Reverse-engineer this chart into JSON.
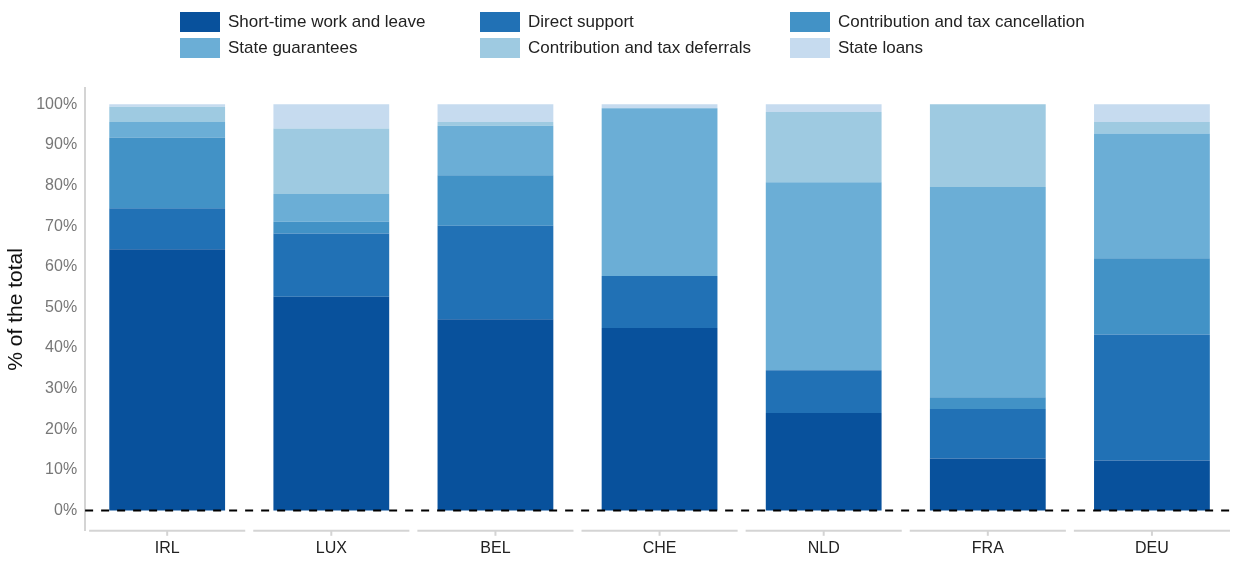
{
  "chart_data": {
    "type": "bar",
    "stacked": true,
    "ylabel": "% of the total",
    "categories": [
      "IRL",
      "LUX",
      "BEL",
      "CHE",
      "NLD",
      "FRA",
      "DEU"
    ],
    "series": [
      {
        "name": "Short-time work and leave",
        "color": "#08519c",
        "values": [
          64.3,
          52.6,
          47.1,
          44.9,
          24.0,
          12.8,
          12.3
        ]
      },
      {
        "name": "Direct support",
        "color": "#2171b5",
        "values": [
          10.1,
          15.6,
          23.0,
          12.8,
          10.5,
          12.2,
          31.0
        ]
      },
      {
        "name": "Contribution and tax cancellation",
        "color": "#4292c6",
        "values": [
          17.4,
          2.9,
          12.4,
          0,
          0,
          2.9,
          18.8
        ]
      },
      {
        "name": "State guarantees",
        "color": "#6baed6",
        "values": [
          3.8,
          6.8,
          12.2,
          41.3,
          46.3,
          51.7,
          30.7
        ]
      },
      {
        "name": "Contribution and tax deferrals",
        "color": "#9ecae1",
        "values": [
          3.8,
          16.1,
          0.9,
          0,
          17.3,
          20.4,
          2.8
        ]
      },
      {
        "name": "State loans",
        "color": "#c6dbef",
        "values": [
          0.6,
          6.0,
          4.4,
          1.0,
          1.9,
          0,
          4.4
        ]
      }
    ],
    "ylim": [
      -5,
      104
    ],
    "yticks": [
      {
        "value": 0,
        "label": "0%"
      },
      {
        "value": 10,
        "label": "10%"
      },
      {
        "value": 20,
        "label": "20%"
      },
      {
        "value": 30,
        "label": "30%"
      },
      {
        "value": 40,
        "label": "40%"
      },
      {
        "value": 50,
        "label": "50%"
      },
      {
        "value": 60,
        "label": "60%"
      },
      {
        "value": 70,
        "label": "70%"
      },
      {
        "value": 80,
        "label": "80%"
      },
      {
        "value": 90,
        "label": "90%"
      },
      {
        "value": 100,
        "label": "100%"
      }
    ],
    "ref_lines": [
      {
        "axis": "y",
        "value": 0,
        "color": "#000000",
        "line_style": "dashed"
      }
    ],
    "grid": false,
    "legend": "top"
  }
}
